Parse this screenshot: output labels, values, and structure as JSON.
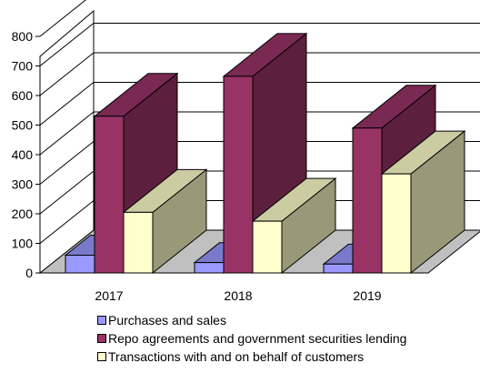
{
  "chart_data": {
    "type": "bar",
    "title": "",
    "xlabel": "",
    "ylabel": "",
    "categories": [
      "2017",
      "2018",
      "2019"
    ],
    "ylim": [
      0,
      800
    ],
    "yticks": [
      0,
      100,
      200,
      300,
      400,
      500,
      600,
      700,
      800
    ],
    "grid": true,
    "legend_position": "bottom",
    "series": [
      {
        "name": "Purchases and sales",
        "values": [
          60,
          35,
          30
        ],
        "color": "#9999ff"
      },
      {
        "name": "Repo agreements and government securities lending",
        "values": [
          530,
          665,
          490
        ],
        "color": "#993366"
      },
      {
        "name": "Transactions with and on behalf of customers",
        "values": [
          205,
          175,
          335
        ],
        "color": "#ffffcc"
      }
    ]
  }
}
